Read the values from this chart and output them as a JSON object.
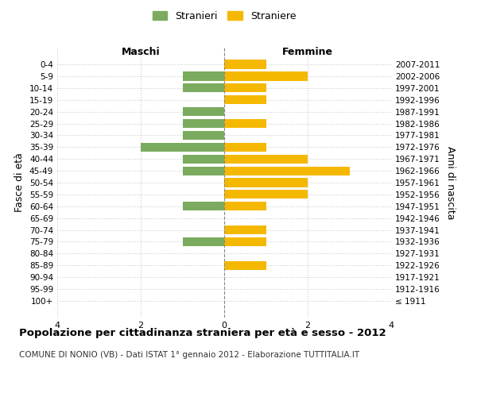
{
  "age_groups": [
    "100+",
    "95-99",
    "90-94",
    "85-89",
    "80-84",
    "75-79",
    "70-74",
    "65-69",
    "60-64",
    "55-59",
    "50-54",
    "45-49",
    "40-44",
    "35-39",
    "30-34",
    "25-29",
    "20-24",
    "15-19",
    "10-14",
    "5-9",
    "0-4"
  ],
  "birth_years": [
    "≤ 1911",
    "1912-1916",
    "1917-1921",
    "1922-1926",
    "1927-1931",
    "1932-1936",
    "1937-1941",
    "1942-1946",
    "1947-1951",
    "1952-1956",
    "1957-1961",
    "1962-1966",
    "1967-1971",
    "1972-1976",
    "1977-1981",
    "1982-1986",
    "1987-1991",
    "1992-1996",
    "1997-2001",
    "2002-2006",
    "2007-2011"
  ],
  "maschi": [
    0,
    0,
    0,
    0,
    0,
    1,
    0,
    0,
    1,
    0,
    0,
    1,
    1,
    2,
    1,
    1,
    1,
    0,
    1,
    1,
    0
  ],
  "femmine": [
    0,
    0,
    0,
    1,
    0,
    1,
    1,
    0,
    1,
    2,
    2,
    3,
    2,
    1,
    0,
    1,
    0,
    1,
    1,
    2,
    1
  ],
  "color_maschi": "#7aab5e",
  "color_femmine": "#f5b800",
  "title": "Popolazione per cittadinanza straniera per età e sesso - 2012",
  "subtitle": "COMUNE DI NONIO (VB) - Dati ISTAT 1° gennaio 2012 - Elaborazione TUTTITALIA.IT",
  "xlabel_left": "Maschi",
  "xlabel_right": "Femmine",
  "ylabel": "Fasce di età",
  "ylabel_right": "Anni di nascita",
  "legend_maschi": "Stranieri",
  "legend_femmine": "Straniere",
  "xlim": 4,
  "background_color": "#ffffff",
  "grid_color": "#cccccc",
  "bar_height": 0.75
}
